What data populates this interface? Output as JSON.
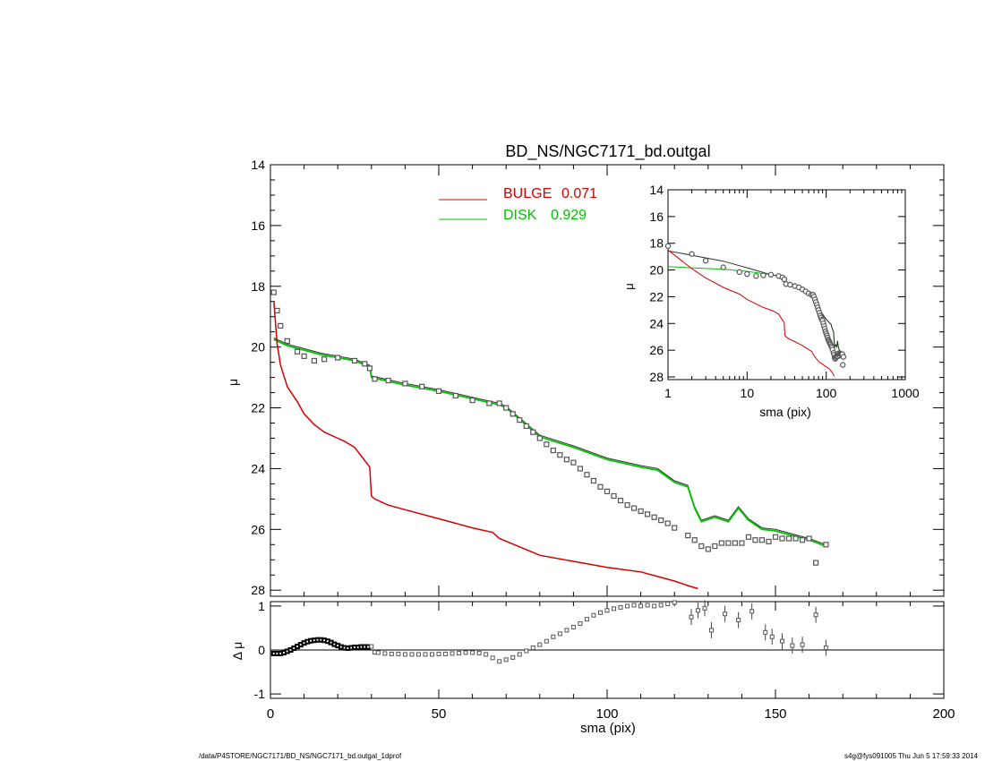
{
  "chart_data": {
    "type": "line",
    "title": "BD_NS/NGC7171_bd.outgal",
    "colors": {
      "bulge": "#d40000",
      "disk": "#00c400",
      "data": "#555555"
    },
    "main": {
      "ylabel": "μ",
      "ylim": [
        28.2,
        14
      ],
      "yticks": [
        14,
        16,
        18,
        20,
        22,
        24,
        26,
        28
      ],
      "xlim": [
        0,
        200
      ],
      "legend": [
        {
          "name": "BULGE",
          "value": "0.071",
          "color": "#d40000"
        },
        {
          "name": "DISK",
          "value": "0.929",
          "color": "#00c400"
        }
      ],
      "bulge": {
        "x": [
          1,
          2,
          3,
          5,
          8,
          10,
          13,
          16,
          20,
          22,
          25,
          29.5,
          30,
          31,
          35,
          40,
          50,
          60,
          66,
          68,
          80,
          90,
          100,
          110,
          115,
          120,
          124,
          127
        ],
        "y": [
          18.5,
          19.9,
          20.6,
          21.3,
          21.8,
          22.2,
          22.55,
          22.8,
          23.0,
          23.1,
          23.3,
          23.95,
          24.9,
          25.0,
          25.2,
          25.35,
          25.65,
          25.95,
          26.1,
          26.3,
          26.85,
          27.05,
          27.25,
          27.4,
          27.55,
          27.7,
          27.85,
          27.95
        ]
      },
      "disk": {
        "x": [
          1,
          5,
          10,
          15,
          20,
          25,
          29.5,
          30,
          40,
          50,
          60,
          68,
          70,
          80,
          90,
          100,
          110,
          115,
          120,
          124,
          126,
          128,
          132,
          136,
          139,
          142,
          146,
          150,
          155,
          160,
          165
        ],
        "y": [
          19.75,
          19.95,
          20.1,
          20.25,
          20.35,
          20.45,
          20.65,
          21.0,
          21.25,
          21.45,
          21.7,
          21.9,
          22.0,
          22.95,
          23.3,
          23.7,
          23.95,
          24.05,
          24.45,
          24.6,
          25.3,
          25.75,
          25.6,
          25.75,
          25.3,
          25.7,
          26.0,
          26.05,
          26.2,
          26.35,
          26.55
        ]
      },
      "data": {
        "x": [
          1,
          2,
          3,
          5,
          8,
          10,
          13,
          16,
          20,
          25,
          28,
          29.5,
          31,
          35,
          40,
          45,
          50,
          55,
          60,
          65,
          68,
          70,
          72,
          74,
          76,
          78,
          80,
          82,
          84,
          86,
          88,
          90,
          92,
          94,
          96,
          98,
          100,
          102,
          104,
          106,
          108,
          110,
          112,
          114,
          116,
          118,
          120,
          124,
          126,
          128,
          130,
          132,
          134,
          136,
          138,
          140,
          142,
          144,
          146,
          148,
          150,
          152,
          154,
          156,
          158,
          160,
          162,
          165
        ],
        "y": [
          18.2,
          18.8,
          19.3,
          19.8,
          20.15,
          20.3,
          20.45,
          20.4,
          20.35,
          20.45,
          20.55,
          20.7,
          21.05,
          21.1,
          21.2,
          21.3,
          21.45,
          21.6,
          21.75,
          21.85,
          21.85,
          22.0,
          22.2,
          22.4,
          22.6,
          22.8,
          23.0,
          23.2,
          23.4,
          23.55,
          23.7,
          23.8,
          24.0,
          24.2,
          24.4,
          24.6,
          24.75,
          24.9,
          25.05,
          25.2,
          25.3,
          25.4,
          25.5,
          25.6,
          25.7,
          25.8,
          25.95,
          26.2,
          26.35,
          26.55,
          26.65,
          26.55,
          26.45,
          26.45,
          26.45,
          26.45,
          26.25,
          26.35,
          26.35,
          26.4,
          26.25,
          26.3,
          26.3,
          26.3,
          26.35,
          26.3,
          27.1,
          26.5
        ]
      }
    },
    "residual": {
      "ylabel": "Δ μ",
      "ylim": [
        -1.1,
        1.1
      ],
      "yticks": [
        -1,
        0,
        1
      ],
      "xlabel": "sma (pix)",
      "xlim": [
        0,
        200
      ],
      "xticks": [
        0,
        50,
        100,
        150,
        200
      ],
      "points": {
        "x": [
          1,
          2,
          3,
          4,
          5,
          6,
          7,
          8,
          9,
          10,
          11,
          12,
          13,
          14,
          15,
          16,
          17,
          18,
          19,
          20,
          21,
          22,
          23,
          24,
          25,
          26,
          27,
          28,
          29,
          30,
          31,
          32,
          34,
          36,
          38,
          40,
          42,
          44,
          46,
          48,
          50,
          52,
          54,
          56,
          58,
          60,
          62,
          64,
          66,
          68,
          70,
          72,
          74,
          76,
          78,
          80,
          82,
          84,
          86,
          88,
          90,
          92,
          94,
          96,
          98,
          100,
          102,
          104,
          106,
          108,
          110,
          112,
          114,
          116,
          118,
          120,
          125,
          127,
          129,
          131,
          135,
          139,
          143,
          147,
          149,
          152,
          155,
          158,
          162,
          165
        ],
        "y": [
          -0.08,
          -0.08,
          -0.08,
          -0.06,
          -0.03,
          0.0,
          0.04,
          0.08,
          0.12,
          0.16,
          0.19,
          0.21,
          0.22,
          0.23,
          0.23,
          0.22,
          0.2,
          0.17,
          0.13,
          0.1,
          0.07,
          0.05,
          0.04,
          0.05,
          0.06,
          0.06,
          0.07,
          0.07,
          0.07,
          0.08,
          -0.05,
          -0.06,
          -0.08,
          -0.09,
          -0.09,
          -0.1,
          -0.1,
          -0.1,
          -0.1,
          -0.1,
          -0.09,
          -0.09,
          -0.08,
          -0.07,
          -0.06,
          -0.06,
          -0.07,
          -0.1,
          -0.18,
          -0.26,
          -0.22,
          -0.17,
          -0.1,
          -0.02,
          0.05,
          0.12,
          0.2,
          0.3,
          0.37,
          0.45,
          0.52,
          0.6,
          0.7,
          0.79,
          0.85,
          0.9,
          0.94,
          0.97,
          1.0,
          1.02,
          1.0,
          1.02,
          1.0,
          1.02,
          1.05,
          1.08,
          0.75,
          0.9,
          0.95,
          0.45,
          0.82,
          0.68,
          0.88,
          0.4,
          0.3,
          0.2,
          0.1,
          0.12,
          0.8,
          0.05
        ]
      }
    },
    "inset": {
      "ylabel": "μ",
      "xlabel": "sma (pix)",
      "xscale": "log",
      "xlim": [
        1,
        1000
      ],
      "xticks": [
        1,
        10,
        100,
        1000
      ],
      "ylim": [
        28.2,
        14
      ],
      "yticks": [
        14,
        16,
        18,
        20,
        22,
        24,
        26,
        28
      ]
    }
  },
  "footer": {
    "left": "/data/P4STORE/NGC7171/BD_NS/NGC7171_bd.outgal_1dprof",
    "right": "s4g@fys091005  Thu Jun  5 17:59:33 2014"
  }
}
